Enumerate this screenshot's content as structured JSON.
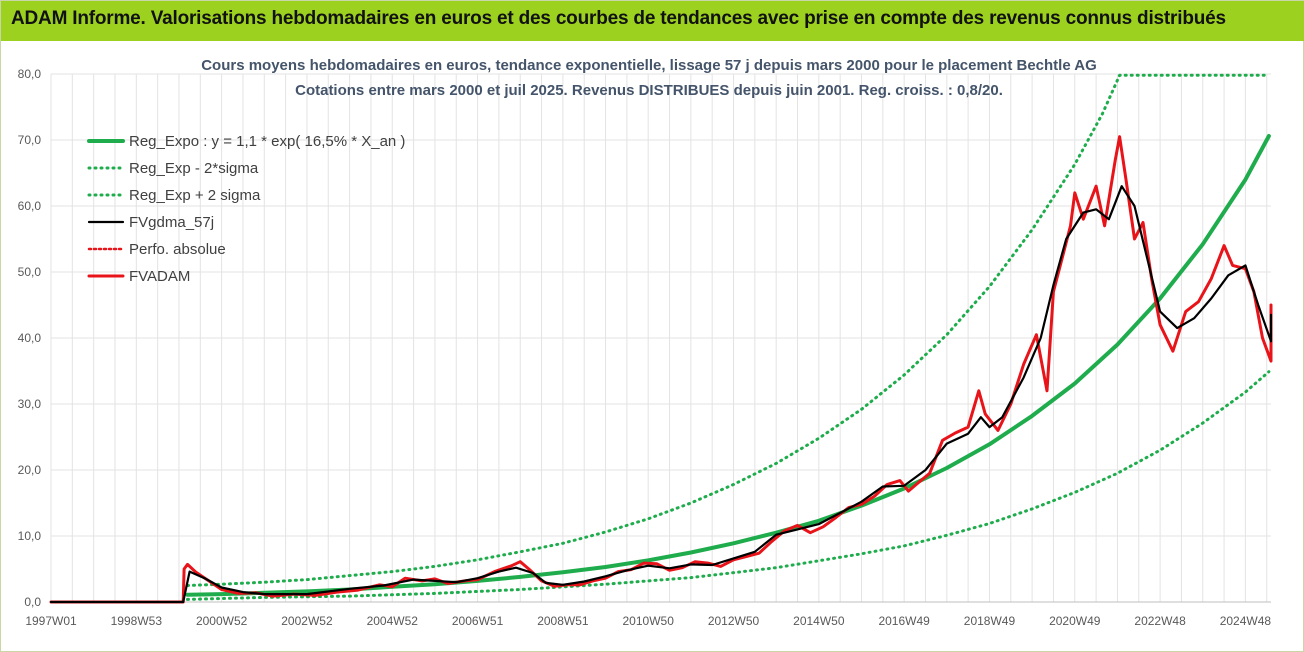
{
  "banner": {
    "title": "ADAM Informe. Valorisations hebdomadaires en euros et des courbes de tendances avec prise en compte des revenus connus distribués",
    "background": "#9cd21f"
  },
  "colors": {
    "trend": "#1fac4c",
    "price": "#e8141a",
    "smooth": "#000000",
    "grid": "#e3e3e3"
  },
  "chart_data": {
    "type": "line",
    "title": "Cours moyens hebdomadaires en euros, tendance exponentielle, lissage 57 j depuis mars 2000 pour le placement Bechtle AG",
    "subtitle": "Cotations entre mars 2000 et juil 2025. Revenus DISTRIBUES depuis juin 2001. Reg. croiss. : 0,8/20.",
    "xlabel": "",
    "ylabel": "",
    "ylim": [
      0,
      80
    ],
    "yticks": [
      "0,0",
      "10,0",
      "20,0",
      "30,0",
      "40,0",
      "50,0",
      "60,0",
      "70,0",
      "80,0"
    ],
    "xlim": [
      1997.0,
      2025.6
    ],
    "xticks": [
      {
        "x": 1997.0,
        "label": "1997W01"
      },
      {
        "x": 1999.0,
        "label": "1998W53"
      },
      {
        "x": 2001.0,
        "label": "2000W52"
      },
      {
        "x": 2003.0,
        "label": "2002W52"
      },
      {
        "x": 2005.0,
        "label": "2004W52"
      },
      {
        "x": 2007.0,
        "label": "2006W51"
      },
      {
        "x": 2009.0,
        "label": "2008W51"
      },
      {
        "x": 2011.0,
        "label": "2010W50"
      },
      {
        "x": 2013.0,
        "label": "2012W50"
      },
      {
        "x": 2015.0,
        "label": "2014W50"
      },
      {
        "x": 2017.0,
        "label": "2016W49"
      },
      {
        "x": 2019.0,
        "label": "2018W49"
      },
      {
        "x": 2021.0,
        "label": "2020W49"
      },
      {
        "x": 2023.0,
        "label": "2022W48"
      },
      {
        "x": 2025.0,
        "label": "2024W48"
      }
    ],
    "grid": true,
    "legend": "top-left",
    "series": [
      {
        "name": "Reg_Expo : y = 1,1 * exp( 16,5% *  X_an )",
        "style": "solid",
        "color": "#1fac4c",
        "points": [
          [
            2000.2,
            1.1
          ],
          [
            2001,
            1.2
          ],
          [
            2002,
            1.4
          ],
          [
            2003,
            1.6
          ],
          [
            2004,
            1.9
          ],
          [
            2005,
            2.3
          ],
          [
            2006,
            2.7
          ],
          [
            2007,
            3.2
          ],
          [
            2008,
            3.8
          ],
          [
            2009,
            4.5
          ],
          [
            2010,
            5.3
          ],
          [
            2011,
            6.3
          ],
          [
            2012,
            7.5
          ],
          [
            2013,
            8.9
          ],
          [
            2014,
            10.5
          ],
          [
            2015,
            12.3
          ],
          [
            2016,
            14.6
          ],
          [
            2017,
            17.2
          ],
          [
            2018,
            20.3
          ],
          [
            2019,
            23.9
          ],
          [
            2020,
            28.2
          ],
          [
            2021,
            33.1
          ],
          [
            2022,
            39.0
          ],
          [
            2023,
            46.0
          ],
          [
            2024,
            54.2
          ],
          [
            2025,
            64.0
          ],
          [
            2025.55,
            70.6
          ]
        ]
      },
      {
        "name": "Reg_Exp - 2*sigma",
        "style": "dotted",
        "color": "#1fac4c",
        "points": [
          [
            2000.2,
            0.4
          ],
          [
            2002,
            0.7
          ],
          [
            2004,
            0.9
          ],
          [
            2006,
            1.3
          ],
          [
            2008,
            1.9
          ],
          [
            2010,
            2.7
          ],
          [
            2012,
            3.7
          ],
          [
            2014,
            5.2
          ],
          [
            2016,
            7.3
          ],
          [
            2017,
            8.5
          ],
          [
            2018,
            10.1
          ],
          [
            2019,
            11.9
          ],
          [
            2020,
            14.1
          ],
          [
            2021,
            16.6
          ],
          [
            2022,
            19.5
          ],
          [
            2023,
            23.0
          ],
          [
            2024,
            27.1
          ],
          [
            2025,
            31.8
          ],
          [
            2025.55,
            34.9
          ]
        ]
      },
      {
        "name": "Reg_Exp + 2 sigma",
        "style": "dotted",
        "color": "#1fac4c",
        "points": [
          [
            2000.2,
            2.5
          ],
          [
            2001,
            2.7
          ],
          [
            2002,
            3.0
          ],
          [
            2003,
            3.4
          ],
          [
            2004,
            4.0
          ],
          [
            2005,
            4.6
          ],
          [
            2006,
            5.4
          ],
          [
            2007,
            6.4
          ],
          [
            2008,
            7.6
          ],
          [
            2009,
            8.9
          ],
          [
            2010,
            10.6
          ],
          [
            2011,
            12.6
          ],
          [
            2012,
            15.0
          ],
          [
            2013,
            17.8
          ],
          [
            2014,
            21.0
          ],
          [
            2015,
            24.8
          ],
          [
            2016,
            29.2
          ],
          [
            2017,
            34.4
          ],
          [
            2018,
            40.5
          ],
          [
            2019,
            47.8
          ],
          [
            2020,
            56.4
          ],
          [
            2021,
            66.3
          ],
          [
            2021.65,
            74.0
          ],
          [
            2022.05,
            79.8
          ],
          [
            2025.55,
            79.8
          ]
        ]
      },
      {
        "name": "FVgdma_57j",
        "style": "solid",
        "color": "#000000",
        "points": [
          [
            1997.0,
            0
          ],
          [
            2000.1,
            0
          ],
          [
            2000.25,
            4.6
          ],
          [
            2000.6,
            3.6
          ],
          [
            2001.0,
            2.2
          ],
          [
            2001.5,
            1.5
          ],
          [
            2002.0,
            1.2
          ],
          [
            2003.0,
            1.2
          ],
          [
            2004.0,
            2.0
          ],
          [
            2004.8,
            2.5
          ],
          [
            2005.5,
            3.4
          ],
          [
            2006.0,
            3.2
          ],
          [
            2006.5,
            3.0
          ],
          [
            2007.0,
            3.6
          ],
          [
            2007.5,
            4.6
          ],
          [
            2007.9,
            5.2
          ],
          [
            2008.3,
            4.4
          ],
          [
            2008.6,
            2.9
          ],
          [
            2009.0,
            2.6
          ],
          [
            2009.5,
            3.1
          ],
          [
            2010.0,
            3.9
          ],
          [
            2010.5,
            4.8
          ],
          [
            2011.0,
            5.5
          ],
          [
            2011.5,
            5.1
          ],
          [
            2012.0,
            5.7
          ],
          [
            2012.5,
            5.6
          ],
          [
            2013.0,
            6.6
          ],
          [
            2013.5,
            7.6
          ],
          [
            2014.0,
            10.2
          ],
          [
            2014.5,
            11.0
          ],
          [
            2015.0,
            11.8
          ],
          [
            2015.5,
            13.5
          ],
          [
            2016.0,
            15.2
          ],
          [
            2016.5,
            17.5
          ],
          [
            2017.0,
            17.6
          ],
          [
            2017.5,
            20.0
          ],
          [
            2018.0,
            24.0
          ],
          [
            2018.5,
            25.5
          ],
          [
            2018.8,
            28.0
          ],
          [
            2019.0,
            26.5
          ],
          [
            2019.3,
            28.0
          ],
          [
            2019.8,
            34.0
          ],
          [
            2020.2,
            40.0
          ],
          [
            2020.5,
            48.0
          ],
          [
            2020.8,
            55.0
          ],
          [
            2021.2,
            59.0
          ],
          [
            2021.5,
            59.5
          ],
          [
            2021.8,
            58.0
          ],
          [
            2022.1,
            63.0
          ],
          [
            2022.4,
            60.0
          ],
          [
            2022.7,
            52.0
          ],
          [
            2023.0,
            44.0
          ],
          [
            2023.4,
            41.5
          ],
          [
            2023.8,
            43.0
          ],
          [
            2024.2,
            46.0
          ],
          [
            2024.6,
            49.5
          ],
          [
            2025.0,
            51.0
          ],
          [
            2025.3,
            45.0
          ],
          [
            2025.6,
            39.5
          ],
          [
            2025.9,
            41.0
          ],
          [
            2026.2,
            43.5
          ]
        ]
      },
      {
        "name": "Perfo. absolue",
        "style": "dotted",
        "color": "#e8141a",
        "points": []
      },
      {
        "name": "FVADAM",
        "style": "solid",
        "color": "#e8141a",
        "points": [
          [
            1997.0,
            0
          ],
          [
            2000.1,
            0
          ],
          [
            2000.12,
            5.0
          ],
          [
            2000.2,
            5.7
          ],
          [
            2000.4,
            4.5
          ],
          [
            2000.7,
            3.2
          ],
          [
            2001.0,
            1.9
          ],
          [
            2001.4,
            1.3
          ],
          [
            2001.8,
            1.4
          ],
          [
            2002.2,
            0.9
          ],
          [
            2002.7,
            1.2
          ],
          [
            2003.2,
            1.0
          ],
          [
            2003.7,
            1.5
          ],
          [
            2004.2,
            1.8
          ],
          [
            2004.7,
            2.6
          ],
          [
            2005.0,
            2.3
          ],
          [
            2005.3,
            3.6
          ],
          [
            2005.7,
            3.2
          ],
          [
            2006.0,
            3.5
          ],
          [
            2006.3,
            2.8
          ],
          [
            2006.7,
            3.2
          ],
          [
            2007.0,
            3.4
          ],
          [
            2007.4,
            4.6
          ],
          [
            2007.8,
            5.5
          ],
          [
            2008.0,
            6.1
          ],
          [
            2008.2,
            5.0
          ],
          [
            2008.5,
            3.2
          ],
          [
            2008.8,
            2.4
          ],
          [
            2009.1,
            2.6
          ],
          [
            2009.4,
            2.6
          ],
          [
            2009.7,
            3.2
          ],
          [
            2010.0,
            3.6
          ],
          [
            2010.3,
            4.6
          ],
          [
            2010.6,
            4.9
          ],
          [
            2010.9,
            5.9
          ],
          [
            2011.2,
            5.8
          ],
          [
            2011.5,
            4.8
          ],
          [
            2011.8,
            5.2
          ],
          [
            2012.1,
            6.1
          ],
          [
            2012.4,
            5.9
          ],
          [
            2012.7,
            5.4
          ],
          [
            2013.0,
            6.4
          ],
          [
            2013.3,
            6.9
          ],
          [
            2013.6,
            7.4
          ],
          [
            2013.9,
            9.2
          ],
          [
            2014.2,
            10.8
          ],
          [
            2014.5,
            11.6
          ],
          [
            2014.8,
            10.5
          ],
          [
            2015.1,
            11.4
          ],
          [
            2015.4,
            12.8
          ],
          [
            2015.7,
            14.3
          ],
          [
            2016.0,
            14.8
          ],
          [
            2016.3,
            16.0
          ],
          [
            2016.6,
            17.8
          ],
          [
            2016.9,
            18.4
          ],
          [
            2017.1,
            16.8
          ],
          [
            2017.3,
            17.9
          ],
          [
            2017.6,
            19.5
          ],
          [
            2017.9,
            24.5
          ],
          [
            2018.2,
            25.6
          ],
          [
            2018.5,
            26.5
          ],
          [
            2018.75,
            32.0
          ],
          [
            2018.9,
            28.5
          ],
          [
            2019.2,
            26.0
          ],
          [
            2019.5,
            30.0
          ],
          [
            2019.8,
            36.0
          ],
          [
            2020.1,
            40.5
          ],
          [
            2020.35,
            32.0
          ],
          [
            2020.5,
            47.0
          ],
          [
            2020.7,
            52.0
          ],
          [
            2020.9,
            57.0
          ],
          [
            2021.0,
            62.0
          ],
          [
            2021.2,
            58.0
          ],
          [
            2021.5,
            63.0
          ],
          [
            2021.7,
            57.0
          ],
          [
            2021.95,
            67.0
          ],
          [
            2022.05,
            70.5
          ],
          [
            2022.2,
            64.0
          ],
          [
            2022.4,
            55.0
          ],
          [
            2022.6,
            57.5
          ],
          [
            2022.8,
            49.0
          ],
          [
            2023.0,
            42.0
          ],
          [
            2023.3,
            38.0
          ],
          [
            2023.6,
            44.0
          ],
          [
            2023.9,
            45.5
          ],
          [
            2024.2,
            49.0
          ],
          [
            2024.5,
            54.0
          ],
          [
            2024.7,
            51.0
          ],
          [
            2025.0,
            50.5
          ],
          [
            2025.2,
            47.0
          ],
          [
            2025.4,
            40.0
          ],
          [
            2025.6,
            36.5
          ],
          [
            2025.8,
            40.0
          ],
          [
            2026.0,
            45.0
          ],
          [
            2026.2,
            44.0
          ]
        ]
      }
    ]
  }
}
